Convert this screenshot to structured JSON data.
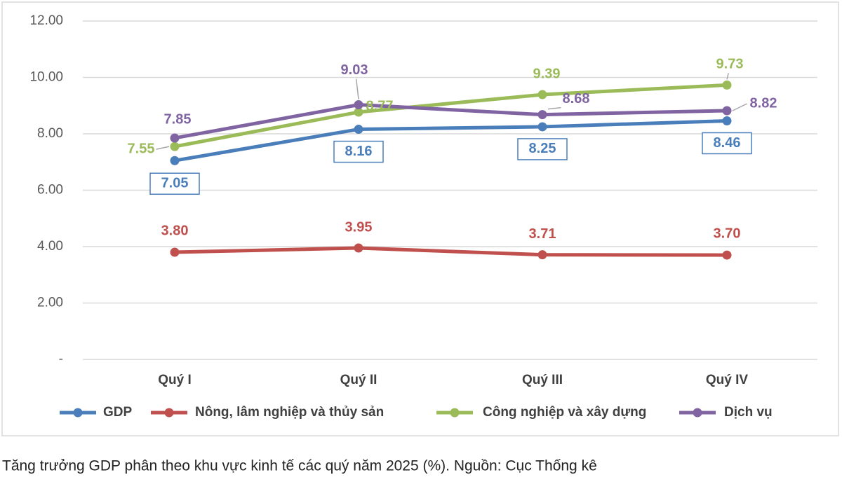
{
  "chart_data": {
    "type": "line",
    "categories": [
      "Quý I",
      "Quý II",
      "Quý III",
      "Quý IV"
    ],
    "series": [
      {
        "name": "GDP",
        "color": "#4a7ebb",
        "values": [
          7.05,
          8.16,
          8.25,
          8.46
        ]
      },
      {
        "name": "Nông, lâm nghiệp và thủy sản",
        "color": "#c0504d",
        "values": [
          3.8,
          3.95,
          3.71,
          3.7
        ],
        "value_labels": [
          "3.80",
          "3.95",
          "3.71",
          "3.70"
        ]
      },
      {
        "name": "Công nghiệp và xây dựng",
        "color": "#9bbb59",
        "values": [
          7.55,
          8.77,
          9.39,
          9.73
        ]
      },
      {
        "name": "Dịch vụ",
        "color": "#8064a2",
        "values": [
          7.85,
          9.03,
          8.68,
          8.82
        ]
      }
    ],
    "ylim": [
      0,
      12
    ],
    "yticks": [
      {
        "value": 0,
        "label": "-"
      },
      {
        "value": 2,
        "label": "2.00"
      },
      {
        "value": 4,
        "label": "4.00"
      },
      {
        "value": 6,
        "label": "6.00"
      },
      {
        "value": 8,
        "label": "8.00"
      },
      {
        "value": 10,
        "label": "10.00"
      },
      {
        "value": 12,
        "label": "12.00"
      }
    ],
    "grid": true,
    "legend": "bottom"
  },
  "caption": "Tăng trưởng GDP phân theo khu vực kinh tế các quý năm 2025 (%). Nguồn: Cục Thống kê"
}
